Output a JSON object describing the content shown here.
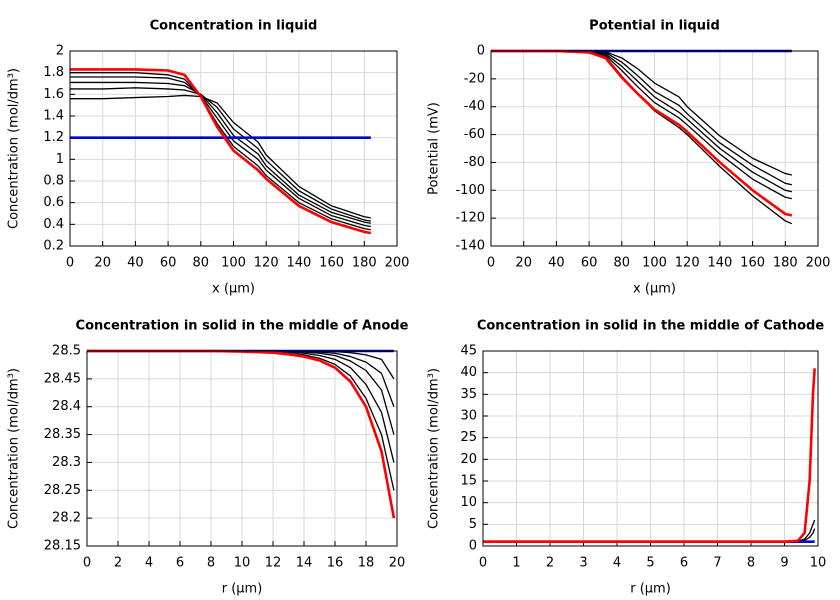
{
  "chart_data": [
    {
      "type": "line",
      "title": "Concentration in liquid",
      "xlabel": "x (µm)",
      "ylabel": "Concentration (mol/dm³)",
      "grid": true,
      "xlim": [
        0,
        200
      ],
      "ylim": [
        0.2,
        2
      ],
      "xticks": [
        0,
        20,
        40,
        60,
        80,
        100,
        120,
        140,
        160,
        180,
        200
      ],
      "yticks": [
        0.2,
        0.4,
        0.6,
        0.8,
        1,
        1.2,
        1.4,
        1.6,
        1.8,
        2
      ],
      "x": [
        0,
        20,
        40,
        60,
        70,
        80,
        90,
        100,
        115,
        120,
        140,
        160,
        180,
        184
      ],
      "series": [
        {
          "color": "#000000",
          "values": [
            1.8,
            1.8,
            1.8,
            1.78,
            1.74,
            1.58,
            1.33,
            1.12,
            0.94,
            0.85,
            0.6,
            0.45,
            0.36,
            0.35
          ]
        },
        {
          "color": "#000000",
          "values": [
            1.76,
            1.76,
            1.76,
            1.75,
            1.71,
            1.59,
            1.38,
            1.17,
            1.0,
            0.9,
            0.64,
            0.48,
            0.39,
            0.38
          ]
        },
        {
          "color": "#000000",
          "values": [
            1.71,
            1.71,
            1.71,
            1.7,
            1.68,
            1.6,
            1.43,
            1.22,
            1.05,
            0.94,
            0.67,
            0.51,
            0.42,
            0.41
          ]
        },
        {
          "color": "#000000",
          "values": [
            1.65,
            1.65,
            1.66,
            1.65,
            1.64,
            1.6,
            1.48,
            1.28,
            1.1,
            0.99,
            0.71,
            0.54,
            0.44,
            0.43
          ]
        },
        {
          "color": "#000000",
          "values": [
            1.56,
            1.56,
            1.57,
            1.58,
            1.59,
            1.58,
            1.52,
            1.34,
            1.16,
            1.04,
            0.75,
            0.57,
            0.47,
            0.46
          ]
        },
        {
          "color": "#0000cc",
          "values": [
            1.2,
            1.2,
            1.2,
            1.2,
            1.2,
            1.2,
            1.2,
            1.2,
            1.2,
            1.2,
            1.2,
            1.2,
            1.2,
            1.2
          ]
        },
        {
          "color": "#ff0000",
          "values": [
            1.83,
            1.83,
            1.83,
            1.82,
            1.78,
            1.58,
            1.3,
            1.08,
            0.9,
            0.82,
            0.57,
            0.42,
            0.33,
            0.32
          ]
        }
      ]
    },
    {
      "type": "line",
      "title": "Potential in liquid",
      "xlabel": "x (µm)",
      "ylabel": "Potential (mV)",
      "grid": true,
      "xlim": [
        0,
        200
      ],
      "ylim": [
        -140,
        0
      ],
      "xticks": [
        0,
        20,
        40,
        60,
        80,
        100,
        120,
        140,
        160,
        180,
        200
      ],
      "yticks": [
        -140,
        -120,
        -100,
        -80,
        -60,
        -40,
        -20,
        0
      ],
      "x": [
        0,
        20,
        40,
        60,
        70,
        80,
        90,
        100,
        115,
        120,
        140,
        160,
        180,
        184
      ],
      "series": [
        {
          "color": "#000000",
          "values": [
            0,
            0,
            0,
            -1,
            -4,
            -18,
            -31,
            -43,
            -55,
            -60,
            -83,
            -104,
            -122,
            -124
          ]
        },
        {
          "color": "#000000",
          "values": [
            0,
            0,
            0,
            -0.5,
            -3,
            -14,
            -26,
            -37,
            -48,
            -53,
            -74,
            -92,
            -105,
            -106
          ]
        },
        {
          "color": "#000000",
          "values": [
            0,
            0,
            0,
            0,
            -2,
            -11,
            -22,
            -33,
            -44,
            -49,
            -70,
            -87,
            -100,
            -101
          ]
        },
        {
          "color": "#000000",
          "values": [
            0,
            0,
            0,
            0,
            -1,
            -8,
            -18,
            -29,
            -39,
            -45,
            -66,
            -82,
            -95,
            -96
          ]
        },
        {
          "color": "#000000",
          "values": [
            0,
            0,
            0,
            0,
            -0.5,
            -5,
            -13,
            -23,
            -33,
            -40,
            -61,
            -77,
            -88,
            -89
          ]
        },
        {
          "color": "#0000cc",
          "values": [
            0,
            0,
            0,
            0,
            0,
            0,
            0,
            0,
            0,
            0,
            0,
            0,
            0,
            0
          ]
        },
        {
          "color": "#ff0000",
          "values": [
            0,
            0,
            0,
            -1,
            -5,
            -19,
            -31,
            -42,
            -53,
            -58,
            -80,
            -100,
            -117,
            -118
          ]
        }
      ]
    },
    {
      "type": "line",
      "title": "Concentration in solid in the middle of Anode",
      "xlabel": "r (µm)",
      "ylabel": "Concentration (mol/dm³)",
      "grid": true,
      "xlim": [
        0,
        20
      ],
      "ylim": [
        28.15,
        28.5
      ],
      "xticks": [
        0,
        2,
        4,
        6,
        8,
        10,
        12,
        14,
        16,
        18,
        20
      ],
      "yticks": [
        28.15,
        28.2,
        28.25,
        28.3,
        28.35,
        28.4,
        28.45,
        28.5
      ],
      "x": [
        0,
        2,
        4,
        6,
        8,
        10,
        12,
        13,
        14,
        15,
        16,
        17,
        18,
        19,
        19.8
      ],
      "series": [
        {
          "color": "#000000",
          "values": [
            28.5,
            28.5,
            28.5,
            28.5,
            28.5,
            28.5,
            28.498,
            28.496,
            28.493,
            28.487,
            28.476,
            28.455,
            28.415,
            28.35,
            28.25
          ]
        },
        {
          "color": "#000000",
          "values": [
            28.5,
            28.5,
            28.5,
            28.5,
            28.5,
            28.5,
            28.499,
            28.498,
            28.496,
            28.492,
            28.485,
            28.47,
            28.44,
            28.39,
            28.3
          ]
        },
        {
          "color": "#000000",
          "values": [
            28.5,
            28.5,
            28.5,
            28.5,
            28.5,
            28.5,
            28.5,
            28.499,
            28.498,
            28.496,
            28.492,
            28.482,
            28.465,
            28.43,
            28.35
          ]
        },
        {
          "color": "#000000",
          "values": [
            28.5,
            28.5,
            28.5,
            28.5,
            28.5,
            28.5,
            28.5,
            28.5,
            28.499,
            28.498,
            28.496,
            28.49,
            28.48,
            28.46,
            28.4
          ]
        },
        {
          "color": "#000000",
          "values": [
            28.5,
            28.5,
            28.5,
            28.5,
            28.5,
            28.5,
            28.5,
            28.5,
            28.5,
            28.5,
            28.499,
            28.497,
            28.493,
            28.485,
            28.45
          ]
        },
        {
          "color": "#0000cc",
          "values": [
            28.5,
            28.5,
            28.5,
            28.5,
            28.5,
            28.5,
            28.5,
            28.5,
            28.5,
            28.5,
            28.5,
            28.5,
            28.5,
            28.5,
            28.5
          ]
        },
        {
          "color": "#ff0000",
          "values": [
            28.5,
            28.5,
            28.5,
            28.5,
            28.5,
            28.499,
            28.497,
            28.494,
            28.49,
            28.483,
            28.47,
            28.445,
            28.4,
            28.32,
            28.2
          ]
        }
      ]
    },
    {
      "type": "line",
      "title": "Concentration in solid in the middle of Cathode",
      "xlabel": "r (µm)",
      "ylabel": "Concentration (mol/dm³)",
      "grid": true,
      "xlim": [
        0,
        10
      ],
      "ylim": [
        0,
        45
      ],
      "xticks": [
        0,
        1,
        2,
        3,
        4,
        5,
        6,
        7,
        8,
        9,
        10
      ],
      "yticks": [
        0,
        5,
        10,
        15,
        20,
        25,
        30,
        35,
        40,
        45
      ],
      "x": [
        0,
        1,
        2,
        3,
        4,
        5,
        6,
        7,
        8,
        9,
        9.4,
        9.6,
        9.75,
        9.85,
        9.9
      ],
      "series": [
        {
          "color": "#000000",
          "values": [
            1,
            1,
            1,
            1,
            1,
            1,
            1,
            1,
            1,
            1,
            1.1,
            1.6,
            3,
            5,
            6
          ]
        },
        {
          "color": "#000000",
          "values": [
            1,
            1,
            1,
            1,
            1,
            1,
            1,
            1,
            1,
            1,
            1.05,
            1.3,
            2,
            3,
            4
          ]
        },
        {
          "color": "#0000cc",
          "values": [
            1,
            1,
            1,
            1,
            1,
            1,
            1,
            1,
            1,
            1,
            1,
            1,
            1,
            1,
            1
          ]
        },
        {
          "color": "#ff0000",
          "values": [
            1,
            1,
            1,
            1,
            1,
            1,
            1,
            1,
            1,
            1,
            1.2,
            3,
            15,
            35,
            41
          ]
        }
      ]
    }
  ]
}
